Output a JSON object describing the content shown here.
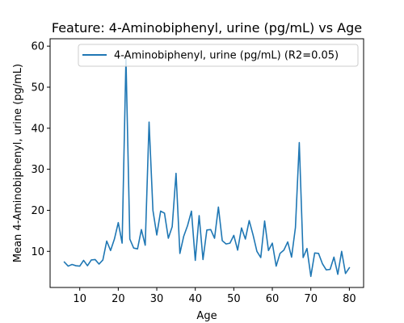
{
  "chart_data": {
    "type": "line",
    "title": "Feature: 4-Aminobiphenyl, urine (pg/mL) vs Age",
    "xlabel": "Age",
    "ylabel": "Mean 4-Aminobiphenyl, urine (pg/mL)",
    "xlim": [
      2.3,
      83.7
    ],
    "ylim": [
      1.2,
      61.8
    ],
    "xticks": [
      10,
      20,
      30,
      40,
      50,
      60,
      70,
      80
    ],
    "yticks": [
      10,
      20,
      30,
      40,
      50,
      60
    ],
    "grid": false,
    "legend_position": "top-right",
    "series": [
      {
        "name": "4-Aminobiphenyl, urine (pg/mL) (R2=0.05)",
        "color": "#1f77b4",
        "x": [
          6,
          7,
          8,
          9,
          10,
          11,
          12,
          13,
          14,
          15,
          16,
          17,
          18,
          19,
          20,
          21,
          22,
          23,
          24,
          25,
          26,
          27,
          28,
          29,
          30,
          31,
          32,
          33,
          34,
          35,
          36,
          37,
          38,
          39,
          40,
          41,
          42,
          43,
          44,
          45,
          46,
          47,
          48,
          49,
          50,
          51,
          52,
          53,
          54,
          55,
          56,
          57,
          58,
          59,
          60,
          61,
          62,
          63,
          64,
          65,
          66,
          67,
          68,
          69,
          70,
          71,
          72,
          73,
          74,
          75,
          76,
          77,
          78,
          79,
          80
        ],
        "values": [
          7.4,
          6.4,
          6.8,
          6.5,
          6.4,
          7.8,
          6.5,
          7.9,
          8.0,
          6.9,
          7.9,
          12.5,
          10.2,
          13.0,
          17.0,
          12.0,
          57.0,
          13.0,
          10.8,
          10.6,
          15.3,
          11.5,
          41.5,
          20.0,
          14.0,
          19.8,
          19.3,
          13.2,
          16.0,
          29.0,
          9.5,
          13.7,
          16.3,
          19.8,
          7.8,
          18.7,
          8.0,
          15.2,
          15.3,
          13.2,
          20.8,
          12.6,
          11.8,
          12.0,
          13.9,
          10.3,
          15.7,
          13.0,
          17.5,
          14.0,
          10.0,
          8.5,
          17.4,
          10.2,
          12.0,
          6.4,
          9.5,
          10.3,
          12.3,
          8.6,
          15.8,
          36.5,
          8.5,
          10.7,
          3.9,
          9.6,
          9.5,
          7.0,
          5.5,
          5.6,
          8.6,
          4.4,
          10.0,
          4.6,
          6.0
        ]
      }
    ]
  }
}
